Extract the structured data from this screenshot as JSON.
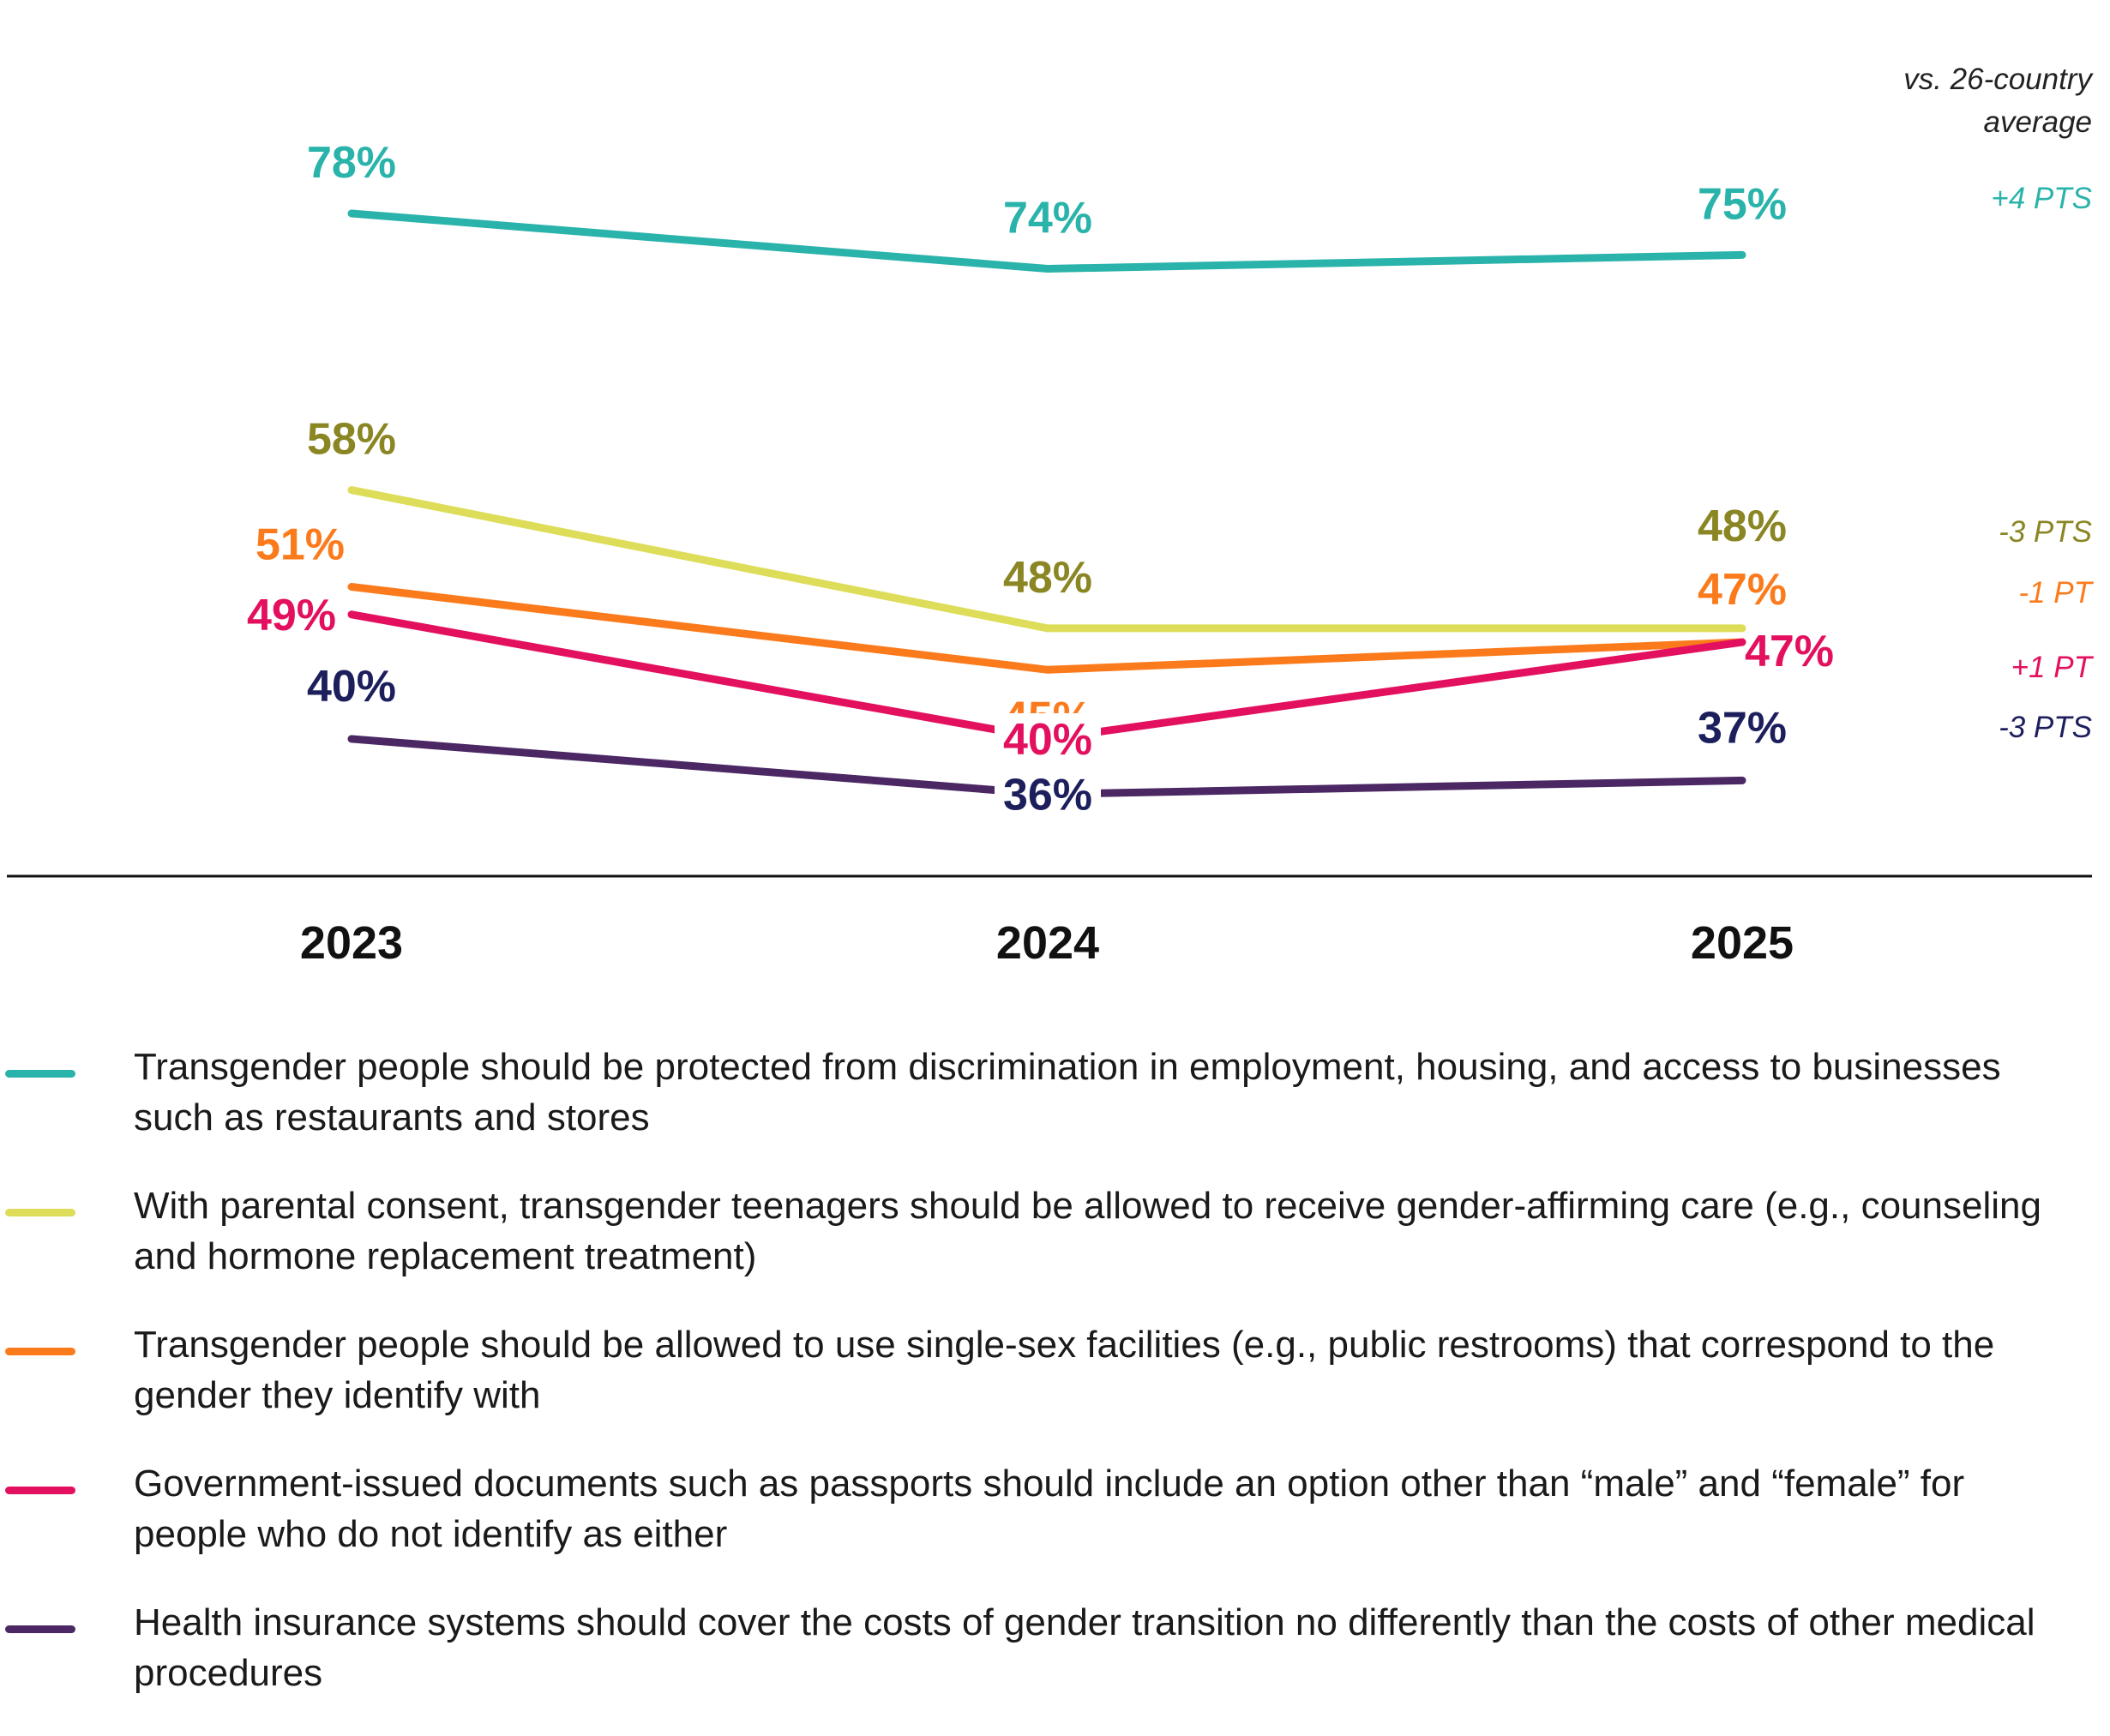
{
  "chart_data": {
    "type": "line",
    "categories": [
      "2023",
      "2024",
      "2025"
    ],
    "ylim": [
      30,
      85
    ],
    "grid": false,
    "legend_position": "bottom",
    "comparison_header": [
      "vs. 26-country",
      "average"
    ],
    "series": [
      {
        "name": "Transgender people should be protected from discrimination in employment, housing, and access to businesses such as restaurants and stores",
        "values": [
          78,
          74,
          75
        ],
        "labels": [
          "78%",
          "74%",
          "75%"
        ],
        "line_color": "#2ab3aa",
        "label_color": "#2ab3aa",
        "comparison": "+4 PTS"
      },
      {
        "name": "With parental consent, transgender teenagers should be allowed to receive gender-affirming care (e.g., counseling and hormone replacement treatment)",
        "values": [
          58,
          48,
          48
        ],
        "labels": [
          "58%",
          "48%",
          "48%"
        ],
        "line_color": "#dedd5a",
        "label_color": "#8a8624",
        "comparison": "-3 PTS"
      },
      {
        "name": "Transgender people should be allowed to use single-sex facilities (e.g., public restrooms) that correspond to the gender they identify with",
        "values": [
          51,
          45,
          47
        ],
        "labels": [
          "51%",
          "45%",
          "47%"
        ],
        "line_color": "#fb7b1c",
        "label_color": "#fb7b1c",
        "comparison": "-1 PT"
      },
      {
        "name": "Government-issued documents such as passports should include an option other than “male” and “female” for people who do not identify as either",
        "values": [
          49,
          40,
          47
        ],
        "labels": [
          "49%",
          "40%",
          "47%"
        ],
        "line_color": "#e3105f",
        "label_color": "#e3105f",
        "comparison": "+1 PT"
      },
      {
        "name": "Health insurance systems should cover the costs of gender transition no differently than the costs of other medical procedures",
        "values": [
          40,
          36,
          37
        ],
        "labels": [
          "40%",
          "36%",
          "37%"
        ],
        "line_color": "#4b2863",
        "label_color": "#1c1f5c",
        "comparison": "-3 PTS"
      }
    ]
  }
}
